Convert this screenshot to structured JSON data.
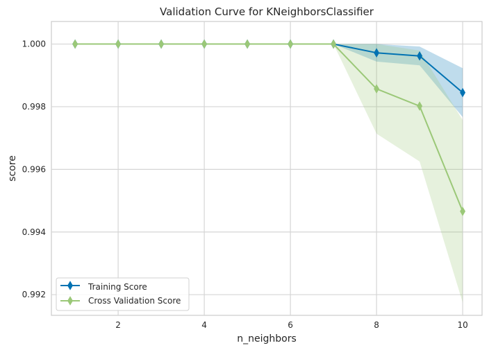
{
  "chart_data": {
    "type": "line",
    "title": "Validation Curve for KNeighborsClassifier",
    "xlabel": "n_neighbors",
    "ylabel": "score",
    "x": [
      1,
      2,
      3,
      4,
      5,
      6,
      7,
      8,
      9,
      10
    ],
    "xlim": [
      0.45,
      10.45
    ],
    "ylim": [
      0.99134,
      1.00072
    ],
    "xticks": [
      2,
      4,
      6,
      8,
      10
    ],
    "yticks": [
      0.992,
      0.994,
      0.996,
      0.998,
      1.0
    ],
    "ytick_labels": [
      "0.992",
      "0.994",
      "0.996",
      "0.998",
      "1.000"
    ],
    "grid": true,
    "legend_position": "lower-left",
    "series": [
      {
        "name": "Training Score",
        "color": "#0072b2",
        "marker": "thin-diamond",
        "values": [
          1.0,
          1.0,
          1.0,
          1.0,
          1.0,
          1.0,
          1.0,
          0.99972,
          0.99962,
          0.99845
        ],
        "band_lower": [
          1.0,
          1.0,
          1.0,
          1.0,
          1.0,
          1.0,
          1.0,
          0.99944,
          0.99932,
          0.99767
        ],
        "band_upper": [
          1.0,
          1.0,
          1.0,
          1.0,
          1.0,
          1.0,
          1.0,
          1.0,
          0.99992,
          0.99923
        ]
      },
      {
        "name": "Cross Validation Score",
        "color": "#9bc878",
        "marker": "thin-diamond",
        "values": [
          1.0,
          1.0,
          1.0,
          1.0,
          1.0,
          1.0,
          1.0,
          0.99857,
          0.99802,
          0.99466
        ],
        "band_lower": [
          1.0,
          1.0,
          1.0,
          1.0,
          1.0,
          1.0,
          1.0,
          0.99714,
          0.99625,
          0.99175
        ],
        "band_upper": [
          1.0,
          1.0,
          1.0,
          1.0,
          1.0,
          1.0,
          1.0,
          1.0,
          0.99979,
          0.99757
        ]
      }
    ]
  }
}
